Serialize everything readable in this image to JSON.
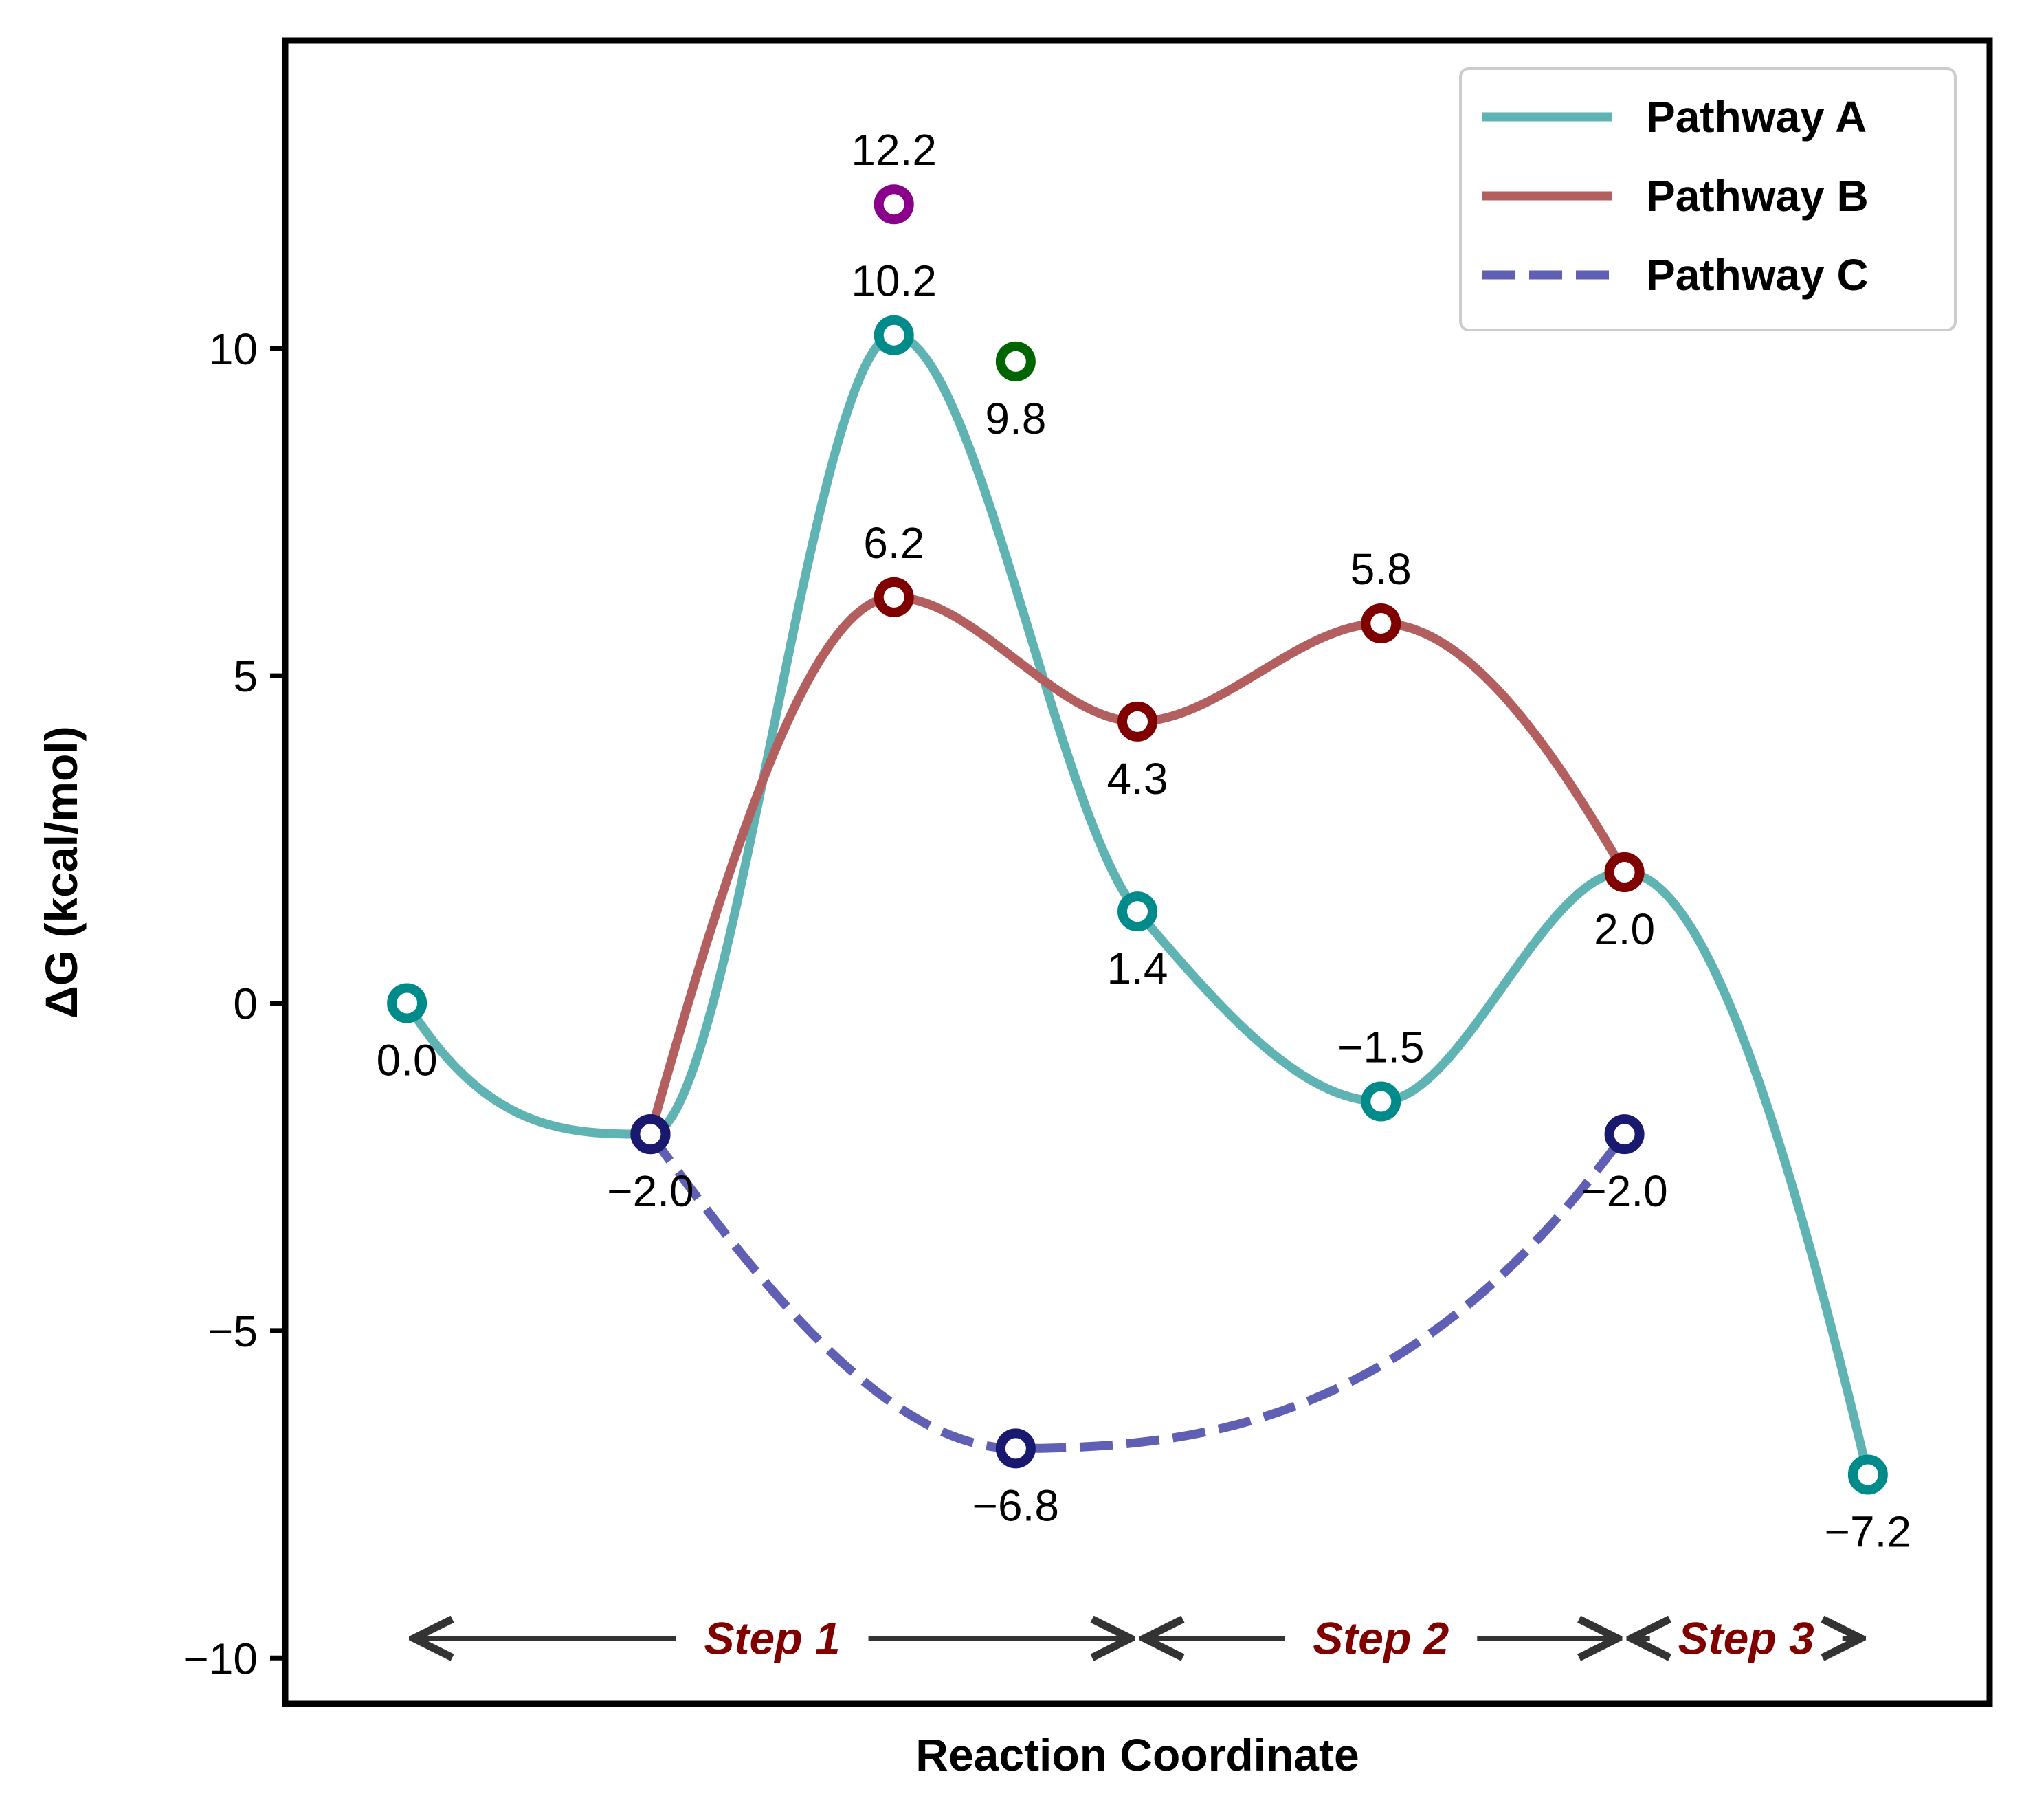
{
  "chart_data": {
    "type": "line",
    "title": "",
    "xlabel": "Reaction Coordinate",
    "ylabel": "ΔG (kcal/mol)",
    "ylim": [
      -10.7,
      14.7
    ],
    "xlim": [
      -0.5,
      6.5
    ],
    "yticks": [
      -10,
      -5,
      0,
      5,
      10
    ],
    "ytick_labels": [
      "−10",
      "−5",
      "0",
      "5",
      "10"
    ],
    "show_xticks": false,
    "grid": false,
    "legend_position": "top-right",
    "series": [
      {
        "name": "Pathway A",
        "color": "#5fb3b3",
        "marker_color": "#008b8b",
        "style": "solid",
        "x": [
          0,
          1,
          2,
          3,
          4,
          5,
          6
        ],
        "values": [
          0.0,
          -2.0,
          10.2,
          1.4,
          -1.5,
          2.0,
          -7.2
        ],
        "labels": [
          "0.0",
          "−2.0",
          "10.2",
          "1.4",
          "−1.5",
          "2.0",
          "−7.2"
        ],
        "label_pos": [
          "below",
          "below",
          "above",
          "below",
          "above",
          "below",
          "below"
        ]
      },
      {
        "name": "Pathway B",
        "color": "#b35f5f",
        "marker_color": "#800000",
        "style": "solid",
        "x": [
          1,
          2,
          3,
          4,
          5
        ],
        "values": [
          -2.0,
          6.2,
          4.3,
          5.8,
          2.0
        ],
        "labels": [
          "",
          "6.2",
          "4.3",
          "5.8",
          ""
        ],
        "label_pos": [
          "none",
          "above",
          "below",
          "above",
          "none"
        ]
      },
      {
        "name": "Pathway C",
        "color": "#5f5fb3",
        "marker_color": "#191970",
        "style": "dashed",
        "x": [
          1,
          2.5,
          5
        ],
        "values": [
          -2.0,
          -6.8,
          -2.0
        ],
        "labels": [
          "",
          "−6.8",
          "−2.0"
        ],
        "label_pos": [
          "none",
          "below",
          "below"
        ]
      }
    ],
    "extra_points": [
      {
        "x": 2,
        "value": 12.2,
        "label": "12.2",
        "label_pos": "above",
        "marker_color": "#8b008b"
      },
      {
        "x": 2.5,
        "value": 9.8,
        "label": "9.8",
        "label_pos": "below",
        "marker_color": "#006400"
      }
    ],
    "steps": [
      {
        "label": "Step 1",
        "x_start": 0,
        "x_end": 3
      },
      {
        "label": "Step 2",
        "x_start": 3,
        "x_end": 5
      },
      {
        "label": "Step 3",
        "x_start": 5,
        "x_end": 6
      }
    ],
    "step_y": -9.7
  }
}
